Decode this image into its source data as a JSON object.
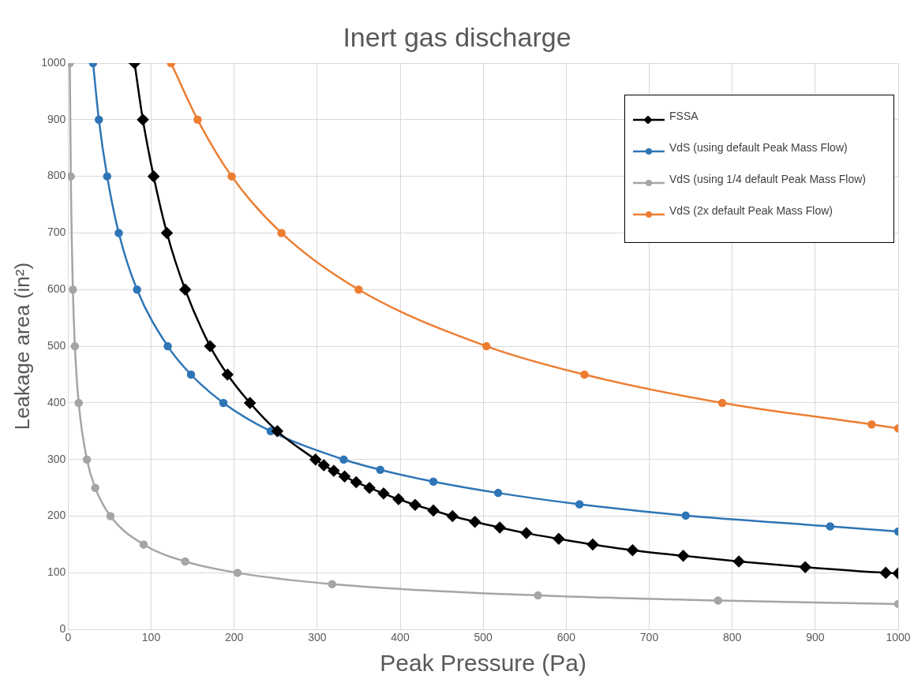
{
  "chart_data": {
    "type": "line",
    "title": "Inert gas discharge",
    "xlabel": "Peak Pressure (Pa)",
    "ylabel": "Leakage area (in²)",
    "xlim": [
      0,
      1000
    ],
    "xticks": [
      0,
      100,
      200,
      300,
      400,
      500,
      600,
      700,
      800,
      900,
      1000
    ],
    "ylim": [
      0,
      1000
    ],
    "yticks": [
      0,
      100,
      200,
      300,
      400,
      500,
      600,
      700,
      800,
      900,
      1000
    ],
    "grid": true,
    "legend": "top right",
    "line_style": "solid",
    "series": [
      {
        "name": "FSSA",
        "color": "#000000",
        "marker": "diamond",
        "x": [
          80,
          90,
          103,
          119,
          141,
          171,
          192,
          219,
          252,
          298,
          308,
          320,
          333,
          347,
          363,
          380,
          398,
          418,
          440,
          463,
          490,
          520,
          552,
          591,
          632,
          680,
          741,
          808,
          888,
          985,
          1000
        ],
        "values": [
          1000,
          900,
          800,
          700,
          600,
          500,
          450,
          400,
          350,
          300,
          290,
          280,
          270,
          260,
          250,
          240,
          230,
          220,
          210,
          200,
          190,
          180,
          170,
          160,
          150,
          140,
          130,
          120,
          110,
          100,
          99
        ]
      },
      {
        "name": "VdS (using default Peak Mass Flow)",
        "color": "#2e75b6",
        "marker": "circle",
        "x": [
          30,
          37,
          47,
          61,
          83,
          120,
          148,
          187,
          244,
          332,
          376,
          440,
          518,
          616,
          744,
          918,
          1000
        ],
        "values": [
          1000,
          900,
          800,
          700,
          600,
          500,
          450,
          400,
          350,
          300,
          282,
          261,
          241,
          221,
          201,
          182,
          173
        ]
      },
      {
        "name": "VdS (using 1/4 default Peak Mass Flow)",
        "color": "#a5a5a5",
        "marker": "circle",
        "x": [
          2,
          3.2,
          5.7,
          8.1,
          12.7,
          22.6,
          32.6,
          51,
          91,
          141,
          204,
          318,
          566,
          783,
          1000
        ],
        "values": [
          1000,
          800,
          600,
          500,
          400,
          300,
          250,
          200,
          150,
          120,
          100,
          80,
          60,
          51,
          45
        ]
      },
      {
        "name": "VdS (2x default Peak Mass Flow)",
        "color": "#ed7d31",
        "marker": "circle",
        "x": [
          124,
          156,
          197,
          257,
          350,
          504,
          622,
          788,
          968,
          1000
        ],
        "values": [
          1000,
          900,
          800,
          700,
          600,
          500,
          450,
          400,
          362,
          355
        ]
      }
    ]
  }
}
